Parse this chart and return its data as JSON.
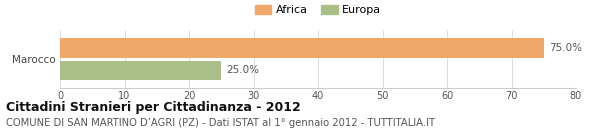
{
  "categories": [
    "Marocco"
  ],
  "series": [
    {
      "label": "Africa",
      "color": "#F0A868",
      "values": [
        75.0
      ]
    },
    {
      "label": "Europa",
      "color": "#AABF88",
      "values": [
        25.0
      ]
    }
  ],
  "xlim": [
    0,
    80
  ],
  "xticks": [
    0,
    10,
    20,
    30,
    40,
    50,
    60,
    70,
    80
  ],
  "bar_height": 0.28,
  "bar_sep": 0.04,
  "title": "Cittadini Stranieri per Cittadinanza - 2012",
  "subtitle": "COMUNE DI SAN MARTINO D’AGRI (PZ) - Dati ISTAT al 1° gennaio 2012 - TUTTITALIA.IT",
  "title_fontsize": 9,
  "subtitle_fontsize": 7.2,
  "label_fontsize": 7.5,
  "tick_fontsize": 7.0,
  "legend_fontsize": 8,
  "bg_color": "#ffffff",
  "spine_color": "#cccccc",
  "text_color": "#555555",
  "title_color": "#111111",
  "ylabel_color": "#444444"
}
